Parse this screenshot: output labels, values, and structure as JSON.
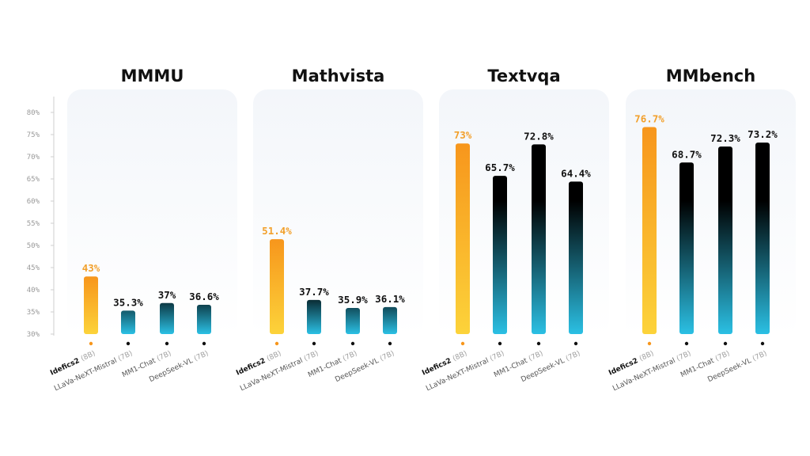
{
  "chart_data": {
    "type": "bar",
    "ylim": [
      30,
      80
    ],
    "y_ticks": [
      "30%",
      "35%",
      "40%",
      "45%",
      "50%",
      "55%",
      "60%",
      "65%",
      "70%",
      "75%",
      "80%"
    ],
    "categories": [
      {
        "name": "Idefics2",
        "size": "(8B)"
      },
      {
        "name": "LLaVa-NeXT-Mistral",
        "size": "(7B)"
      },
      {
        "name": "MM1-Chat",
        "size": "(7B)"
      },
      {
        "name": "DeepSeek-VL",
        "size": "(7B)"
      }
    ],
    "highlight_index": 0,
    "colors": {
      "highlight_top": "#f7961c",
      "highlight_bottom": "#fcd33a",
      "highlight_label": "#f2a02b",
      "other_top": "#000000",
      "other_bottom": "#2bc0e4",
      "other_label": "#111111",
      "panel_bg_top": "#f3f6fa",
      "panel_bg_bottom": "#ffffff"
    },
    "panels": [
      {
        "title": "MMMU",
        "values": [
          43,
          35.3,
          37,
          36.6
        ],
        "labels": [
          "43%",
          "35.3%",
          "37%",
          "36.6%"
        ]
      },
      {
        "title": "Mathvista",
        "values": [
          51.4,
          37.7,
          35.9,
          36.1
        ],
        "labels": [
          "51.4%",
          "37.7%",
          "35.9%",
          "36.1%"
        ]
      },
      {
        "title": "Textvqa",
        "values": [
          73,
          65.7,
          72.8,
          64.4
        ],
        "labels": [
          "73%",
          "65.7%",
          "72.8%",
          "64.4%"
        ]
      },
      {
        "title": "MMbench",
        "values": [
          76.7,
          68.7,
          72.3,
          73.2
        ],
        "labels": [
          "76.7%",
          "68.7%",
          "72.3%",
          "73.2%"
        ]
      }
    ]
  }
}
